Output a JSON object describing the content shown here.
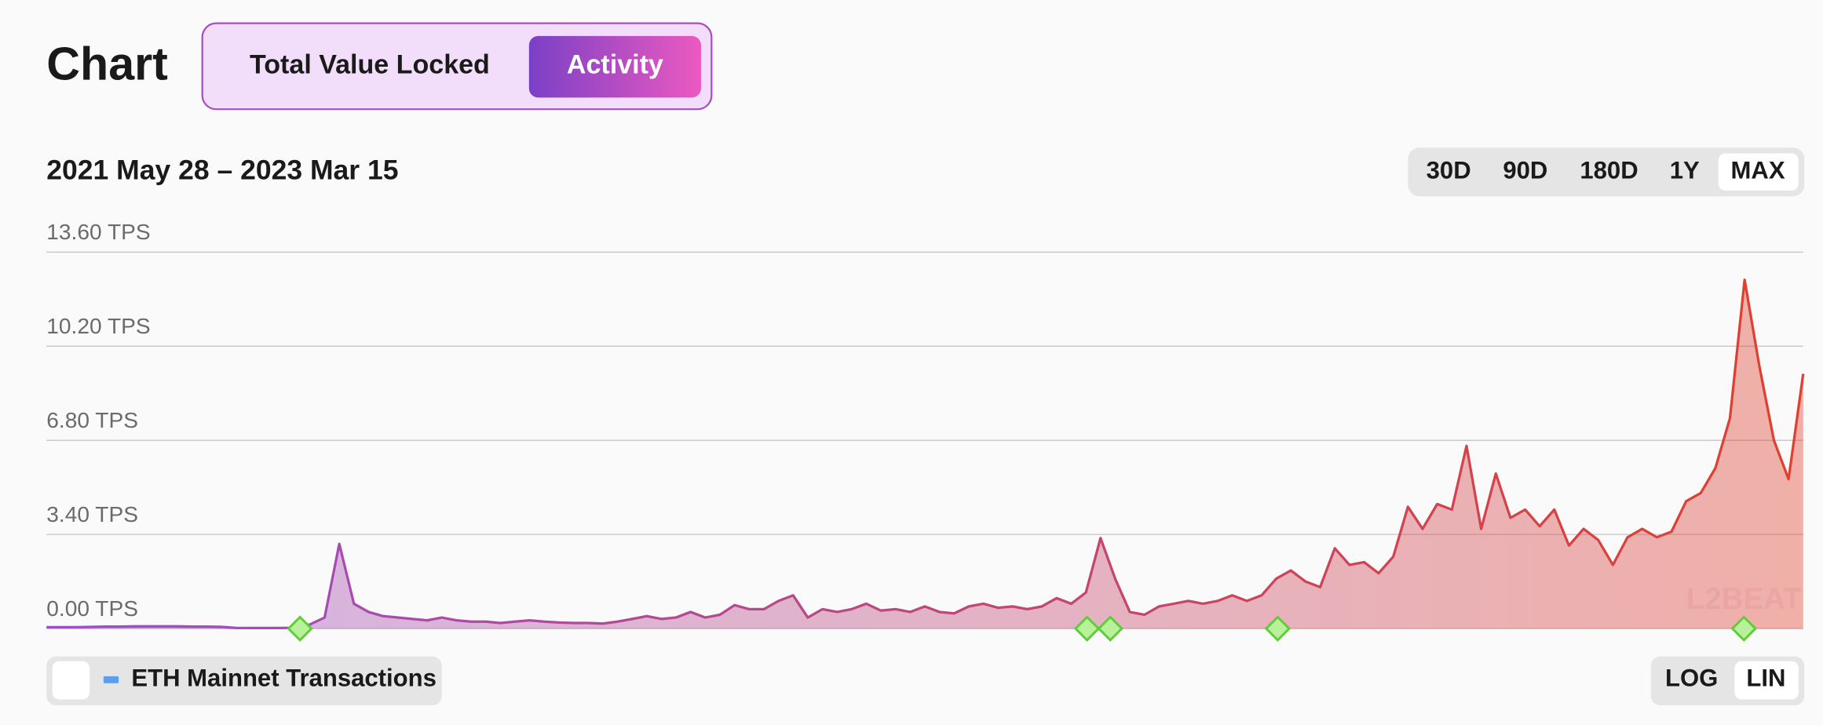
{
  "header": {
    "title": "Chart",
    "tabs": [
      "Total Value Locked",
      "Activity"
    ]
  },
  "range_label": "2021 May 28 – 2023 Mar 15",
  "time_buttons": [
    "30D",
    "90D",
    "180D",
    "1Y",
    "MAX"
  ],
  "scale_buttons": [
    "LOG",
    "LIN"
  ],
  "toggle_label": "ETH Mainnet Transactions",
  "watermark": "L2BEAT",
  "chart_data": {
    "type": "area",
    "color_start": "#9b4fc9",
    "color_end": "#e0402d",
    "grid": true,
    "ylim": [
      0,
      13.6
    ],
    "yticks": [
      {
        "value": 0,
        "label": "0.00 TPS"
      },
      {
        "value": 3.4,
        "label": "3.40 TPS"
      },
      {
        "value": 6.8,
        "label": "6.80 TPS"
      },
      {
        "value": 10.2,
        "label": "10.20 TPS"
      },
      {
        "value": 13.6,
        "label": "13.60 TPS"
      }
    ],
    "values": [
      0.05,
      0.05,
      0.05,
      0.06,
      0.07,
      0.07,
      0.08,
      0.08,
      0.08,
      0.08,
      0.07,
      0.07,
      0.06,
      0.02,
      0.02,
      0.02,
      0.02,
      0.03,
      0.15,
      0.4,
      3.06,
      0.9,
      0.6,
      0.45,
      0.4,
      0.35,
      0.3,
      0.4,
      0.3,
      0.25,
      0.25,
      0.2,
      0.25,
      0.3,
      0.25,
      0.22,
      0.2,
      0.2,
      0.18,
      0.25,
      0.35,
      0.45,
      0.35,
      0.4,
      0.6,
      0.4,
      0.5,
      0.85,
      0.7,
      0.7,
      1.0,
      1.2,
      0.4,
      0.7,
      0.6,
      0.7,
      0.9,
      0.65,
      0.7,
      0.6,
      0.8,
      0.6,
      0.55,
      0.8,
      0.9,
      0.75,
      0.8,
      0.7,
      0.8,
      1.1,
      0.9,
      1.3,
      3.27,
      1.8,
      0.6,
      0.5,
      0.8,
      0.9,
      1.0,
      0.9,
      1.0,
      1.2,
      1.0,
      1.2,
      1.8,
      2.1,
      1.7,
      1.5,
      2.9,
      2.3,
      2.4,
      2.0,
      2.6,
      4.4,
      3.6,
      4.5,
      4.3,
      6.6,
      3.6,
      5.6,
      4.0,
      4.3,
      3.7,
      4.3,
      3.0,
      3.6,
      3.2,
      2.3,
      3.3,
      3.6,
      3.3,
      3.5,
      4.6,
      4.9,
      5.8,
      7.6,
      12.6,
      9.5,
      6.8,
      5.4,
      9.2
    ]
  }
}
